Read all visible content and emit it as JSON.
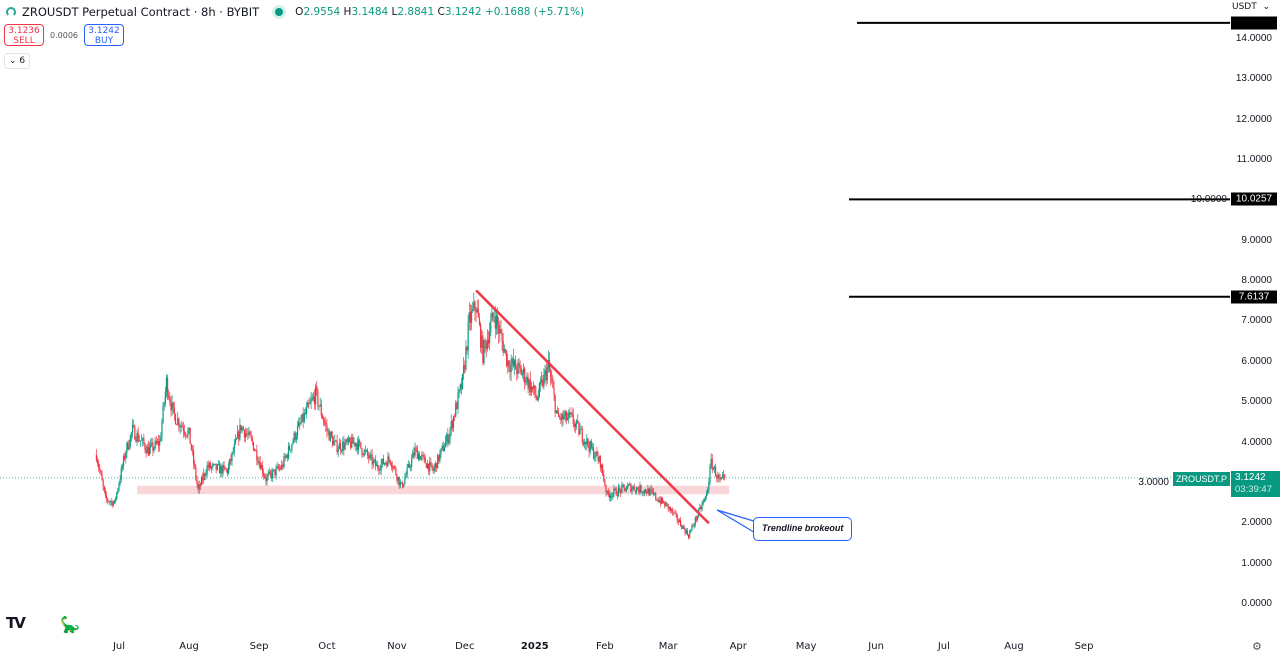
{
  "header": {
    "title": "ZROUSDT Perpetual Contract · 8h · BYBIT",
    "open_label": "O",
    "open": "2.9554",
    "high_label": "H",
    "high": "3.1484",
    "low_label": "L",
    "low": "2.8841",
    "close_label": "C",
    "close": "3.1242",
    "change": "+0.1688 (+5.71%)"
  },
  "trade": {
    "sell_price": "3.1236",
    "sell_label": "SELL",
    "spread": "0.0006",
    "buy_price": "3.1242",
    "buy_label": "BUY"
  },
  "indicators_collapse": {
    "icon": "chevron-down-icon",
    "count": "6"
  },
  "currency": "USDT",
  "symbol_tag": "ZROUSDT.P",
  "last_price": "3.1242",
  "countdown": "03:39:47",
  "annotation": "Trendline brokeout",
  "colors": {
    "up": "#089981",
    "down": "#f23645",
    "trendline": "#f23645",
    "support_zone": "#f9d6d9",
    "callout": "#2962ff",
    "level_lines": "#000000"
  },
  "chart_data": {
    "type": "candlestick",
    "ylim": [
      0,
      14.5
    ],
    "yticks": [
      "14.0000",
      "13.0000",
      "12.0000",
      "11.0000",
      "10.0000",
      "9.0000",
      "8.0000",
      "7.0000",
      "6.0000",
      "5.0000",
      "4.0000",
      "3.0000",
      "2.0000",
      "1.0000",
      "0.0000"
    ],
    "xticks": [
      {
        "label": "Jul",
        "date": "2024-07-01"
      },
      {
        "label": "Aug",
        "date": "2024-08-01"
      },
      {
        "label": "Sep",
        "date": "2024-09-01"
      },
      {
        "label": "Oct",
        "date": "2024-10-01"
      },
      {
        "label": "Nov",
        "date": "2024-11-01"
      },
      {
        "label": "Dec",
        "date": "2024-12-01"
      },
      {
        "label": "2025",
        "date": "2025-01-01",
        "year": true
      },
      {
        "label": "Feb",
        "date": "2025-02-01"
      },
      {
        "label": "Mar",
        "date": "2025-03-01"
      },
      {
        "label": "Apr",
        "date": "2025-04-01"
      },
      {
        "label": "May",
        "date": "2025-05-01"
      },
      {
        "label": "Jun",
        "date": "2025-06-01"
      },
      {
        "label": "Jul",
        "date": "2025-07-01"
      },
      {
        "label": "Aug",
        "date": "2025-08-01"
      },
      {
        "label": "Sep",
        "date": "2025-09-01"
      }
    ],
    "price_path": [
      [
        "2024-06-21",
        3.7
      ],
      [
        "2024-06-25",
        2.6
      ],
      [
        "2024-06-29",
        2.5
      ],
      [
        "2024-07-04",
        3.8
      ],
      [
        "2024-07-07",
        4.3
      ],
      [
        "2024-07-14",
        3.8
      ],
      [
        "2024-07-19",
        4.0
      ],
      [
        "2024-07-22",
        5.5
      ],
      [
        "2024-07-25",
        4.7
      ],
      [
        "2024-08-01",
        4.2
      ],
      [
        "2024-08-05",
        2.8
      ],
      [
        "2024-08-09",
        3.4
      ],
      [
        "2024-08-18",
        3.3
      ],
      [
        "2024-08-24",
        4.4
      ],
      [
        "2024-08-29",
        4.0
      ],
      [
        "2024-09-04",
        3.1
      ],
      [
        "2024-09-11",
        3.4
      ],
      [
        "2024-09-17",
        4.2
      ],
      [
        "2024-09-26",
        5.2
      ],
      [
        "2024-10-01",
        4.3
      ],
      [
        "2024-10-05",
        3.9
      ],
      [
        "2024-10-14",
        4.0
      ],
      [
        "2024-10-23",
        3.4
      ],
      [
        "2024-10-29",
        3.6
      ],
      [
        "2024-11-03",
        2.9
      ],
      [
        "2024-11-09",
        3.8
      ],
      [
        "2024-11-17",
        3.3
      ],
      [
        "2024-11-24",
        4.2
      ],
      [
        "2024-11-30",
        5.5
      ],
      [
        "2024-12-03",
        7.0
      ],
      [
        "2024-12-06",
        7.4
      ],
      [
        "2024-12-09",
        6.2
      ],
      [
        "2024-12-14",
        7.2
      ],
      [
        "2024-12-20",
        6.0
      ],
      [
        "2024-12-27",
        5.7
      ],
      [
        "2025-01-02",
        5.1
      ],
      [
        "2025-01-07",
        5.9
      ],
      [
        "2025-01-11",
        4.6
      ],
      [
        "2025-01-17",
        4.6
      ],
      [
        "2025-01-24",
        4.0
      ],
      [
        "2025-01-30",
        3.5
      ],
      [
        "2025-02-02",
        2.7
      ],
      [
        "2025-02-12",
        2.9
      ],
      [
        "2025-02-20",
        2.8
      ],
      [
        "2025-03-01",
        2.4
      ],
      [
        "2025-03-05",
        2.1
      ],
      [
        "2025-03-10",
        1.7
      ],
      [
        "2025-03-14",
        2.2
      ],
      [
        "2025-03-18",
        2.7
      ],
      [
        "2025-03-20",
        3.5
      ],
      [
        "2025-03-24",
        3.0
      ],
      [
        "2025-03-26",
        3.1242
      ]
    ],
    "trendline": {
      "from": [
        "2024-12-06",
        7.77
      ],
      "to": [
        "2025-03-19",
        2.0
      ]
    },
    "support_zone": {
      "from": "2024-07-09",
      "to": "2025-03-28",
      "low": 2.72,
      "high": 2.93
    },
    "horizontal_levels": [
      {
        "price": 14.4,
        "label": ""
      },
      {
        "price": 10.0257,
        "label": "10.0257"
      },
      {
        "price": 7.6137,
        "label": "7.6137"
      }
    ],
    "levels_start": "2025-05-20"
  }
}
